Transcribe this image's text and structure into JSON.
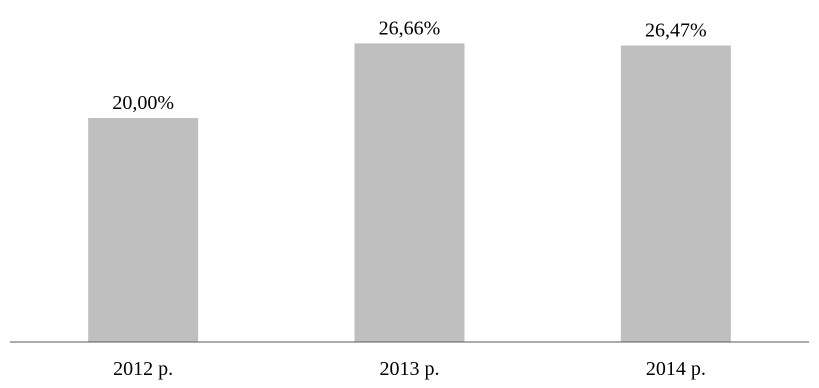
{
  "chart_data": {
    "type": "bar",
    "categories": [
      "2012 р.",
      "2013 р.",
      "2014 р."
    ],
    "values": [
      20.0,
      26.66,
      26.47
    ],
    "data_labels": [
      "20,00%",
      "26,66%",
      "26,47%"
    ],
    "ylim": [
      0,
      30
    ],
    "grid": false,
    "legend": "none",
    "bar_color": "#bfbfbf",
    "axis_color": "#595959"
  }
}
